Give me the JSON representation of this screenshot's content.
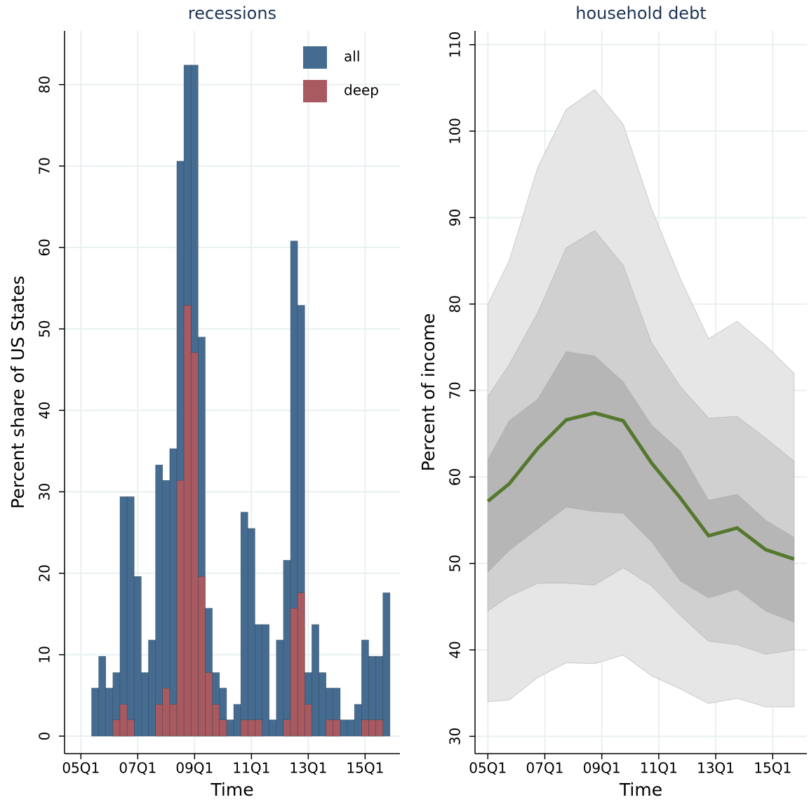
{
  "chart_data": [
    {
      "type": "bar",
      "title": "recessions",
      "x_label": "Time",
      "y_label": "Percent share of US States",
      "x": [
        182,
        183,
        184,
        185,
        186,
        187,
        188,
        189,
        190,
        191,
        192,
        193,
        194,
        195,
        196,
        197,
        198,
        199,
        200,
        201,
        202,
        203,
        204,
        205,
        206,
        207,
        208,
        209,
        210,
        211,
        212,
        213,
        214,
        215,
        216,
        217,
        218,
        219,
        220,
        221,
        222,
        223
      ],
      "series": [
        {
          "name": "all",
          "color": "#456c90",
          "values": [
            5.9,
            9.8,
            5.9,
            7.8,
            29.4,
            29.4,
            19.6,
            7.8,
            11.8,
            33.3,
            31.4,
            35.3,
            70.6,
            82.4,
            82.4,
            49.0,
            15.7,
            7.8,
            5.9,
            2.0,
            3.9,
            27.5,
            25.5,
            13.7,
            13.7,
            2.0,
            11.8,
            21.6,
            60.8,
            52.9,
            7.8,
            13.7,
            7.8,
            5.9,
            5.9,
            2.0,
            2.0,
            3.9,
            11.8,
            9.8,
            9.8,
            17.6
          ]
        },
        {
          "name": "deep",
          "color": "#a95a60",
          "values": [
            0,
            0,
            0,
            2.0,
            3.9,
            2.0,
            0,
            0,
            0,
            3.9,
            5.9,
            3.9,
            31.4,
            52.9,
            47.1,
            19.6,
            7.8,
            3.9,
            2.0,
            0,
            0,
            2.0,
            2.0,
            2.0,
            0,
            0,
            0,
            2.0,
            15.7,
            17.6,
            3.9,
            0,
            0,
            2.0,
            2.0,
            0,
            0,
            0,
            2.0,
            2.0,
            2.0,
            0
          ]
        }
      ],
      "xlim": [
        177.7,
        224.9
      ],
      "xticks": [
        {
          "value": 180,
          "label": "05Q1"
        },
        {
          "value": 188,
          "label": "07Q1"
        },
        {
          "value": 196,
          "label": "09Q1"
        },
        {
          "value": 204,
          "label": "11Q1"
        },
        {
          "value": 212,
          "label": "13Q1"
        },
        {
          "value": 220,
          "label": "15Q1"
        }
      ],
      "ylim": [
        -2.15,
        86.6
      ],
      "yticks": [
        0,
        10,
        20,
        30,
        40,
        50,
        60,
        70,
        80
      ],
      "grid": true,
      "legend": "top-right"
    },
    {
      "type": "line",
      "title": "household debt",
      "x_label": "Time",
      "y_label": "Percent of income",
      "x": [
        180,
        183,
        187,
        191,
        195,
        199,
        203,
        207,
        211,
        215,
        219,
        223
      ],
      "series": [
        {
          "color": "#55782e",
          "values": [
            57.2,
            59.2,
            63.3,
            66.6,
            67.4,
            66.5,
            61.6,
            57.6,
            53.2,
            54.1,
            51.6,
            50.5
          ]
        }
      ],
      "bands": [
        {
          "color": "#e6e6e6",
          "upper": [
            80,
            85,
            95.8,
            102.5,
            104.8,
            100.8,
            91,
            83,
            76,
            78,
            75.2,
            72
          ],
          "lower": [
            34,
            34.2,
            36.8,
            38.5,
            38.4,
            39.4,
            37,
            35.5,
            33.8,
            34.4,
            33.4,
            33.4
          ]
        },
        {
          "color": "#d0d0d0",
          "upper": [
            69.3,
            73,
            79,
            86.5,
            88.5,
            84.5,
            75.5,
            70.5,
            66.8,
            67,
            64.5,
            61.8
          ],
          "lower": [
            44.5,
            46.2,
            47.7,
            47.7,
            47.5,
            49.5,
            47.4,
            44,
            41,
            40.6,
            39.5,
            40
          ]
        },
        {
          "color": "#b6b6b6",
          "upper": [
            62,
            66.5,
            69,
            74.5,
            74,
            71,
            66,
            63,
            57.3,
            58,
            55,
            53
          ],
          "lower": [
            49,
            51.5,
            54,
            56.5,
            56,
            55.8,
            52.5,
            48,
            46,
            47,
            44.5,
            43.2
          ]
        }
      ],
      "xlim": [
        178.2,
        224.8
      ],
      "xticks": [
        {
          "value": 180,
          "label": "05Q1"
        },
        {
          "value": 188,
          "label": "07Q1"
        },
        {
          "value": 196,
          "label": "09Q1"
        },
        {
          "value": 204,
          "label": "11Q1"
        },
        {
          "value": 212,
          "label": "13Q1"
        },
        {
          "value": 220,
          "label": "15Q1"
        }
      ],
      "ylim": [
        28,
        111.6
      ],
      "yticks": [
        30,
        40,
        50,
        60,
        70,
        80,
        90,
        100,
        110
      ],
      "grid": true
    }
  ]
}
